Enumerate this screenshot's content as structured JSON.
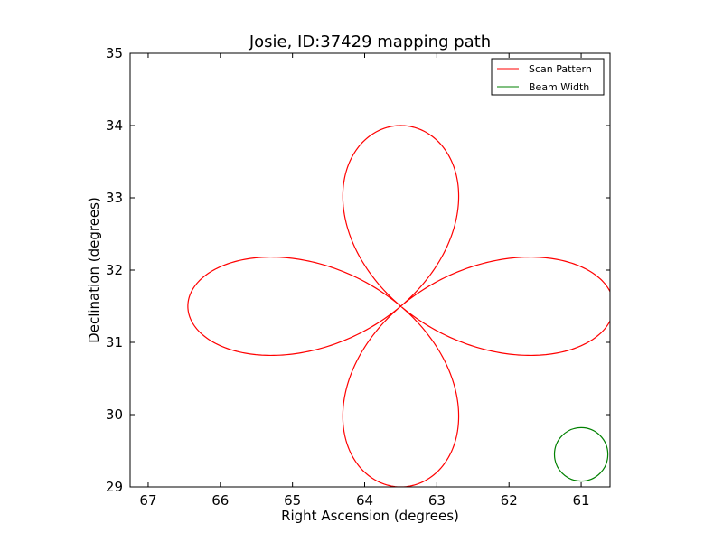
{
  "chart_data": {
    "type": "line",
    "title": "Josie, ID:37429 mapping path",
    "xlabel": "Right Ascension (degrees)",
    "ylabel": "Declination (degrees)",
    "xlim": [
      67.25,
      60.6
    ],
    "ylim": [
      29,
      35
    ],
    "x_ticks": [
      67,
      66,
      65,
      64,
      63,
      62,
      61
    ],
    "y_ticks": [
      29,
      30,
      31,
      32,
      33,
      34,
      35
    ],
    "grid": false,
    "legend": {
      "position": "top-right"
    },
    "series": [
      {
        "name": "Scan Pattern",
        "color": "#ff0000",
        "shape": "four-petal rose",
        "center": [
          63.5,
          31.5
        ],
        "ra_amplitude": 2.95,
        "dec_amplitude": 2.5,
        "x": [
          63.5,
          63.8,
          64.2,
          64.6,
          65.0,
          65.3,
          65.7,
          66.0,
          66.3,
          66.45,
          66.45,
          66.3,
          66.0,
          65.7,
          65.3,
          65.0,
          64.6,
          64.2,
          63.8,
          63.5,
          63.2,
          62.8,
          62.4,
          62.0,
          61.7,
          61.3,
          61.0,
          60.7,
          60.6,
          60.6,
          60.7,
          61.0,
          61.3,
          61.7,
          62.0,
          62.4,
          62.8,
          63.2,
          63.5,
          63.7,
          63.9,
          64.05,
          64.15,
          64.1,
          64.0,
          63.8,
          63.5,
          63.2,
          63.0,
          62.9,
          62.85,
          62.95,
          63.1,
          63.3,
          63.5,
          63.7,
          63.9,
          64.05,
          64.15,
          64.1,
          64.0,
          63.8,
          63.5,
          63.2,
          63.0,
          62.9,
          62.85,
          62.95,
          63.1,
          63.3,
          63.5
        ],
        "y": [
          31.5,
          31.7,
          31.9,
          32.05,
          32.15,
          32.2,
          32.15,
          32.0,
          31.8,
          31.6,
          31.4,
          31.2,
          31.0,
          30.85,
          30.8,
          30.85,
          30.95,
          31.1,
          31.3,
          31.5,
          31.7,
          31.9,
          32.05,
          32.15,
          32.2,
          32.15,
          32.0,
          31.8,
          31.6,
          31.4,
          31.2,
          31.0,
          30.85,
          30.8,
          30.85,
          30.95,
          31.1,
          31.3,
          31.5,
          31.8,
          32.3,
          32.8,
          33.3,
          33.7,
          33.95,
          34.05,
          34.0,
          33.95,
          33.7,
          33.3,
          32.8,
          32.3,
          31.9,
          31.7,
          31.5,
          31.2,
          30.7,
          30.2,
          29.7,
          29.3,
          29.05,
          29.0,
          29.0,
          29.05,
          29.3,
          29.7,
          30.2,
          30.7,
          31.1,
          31.3,
          31.5
        ]
      },
      {
        "name": "Beam Width",
        "color": "#008000",
        "shape": "circle",
        "center": [
          61.0,
          29.45
        ],
        "radius": 0.37
      }
    ]
  }
}
